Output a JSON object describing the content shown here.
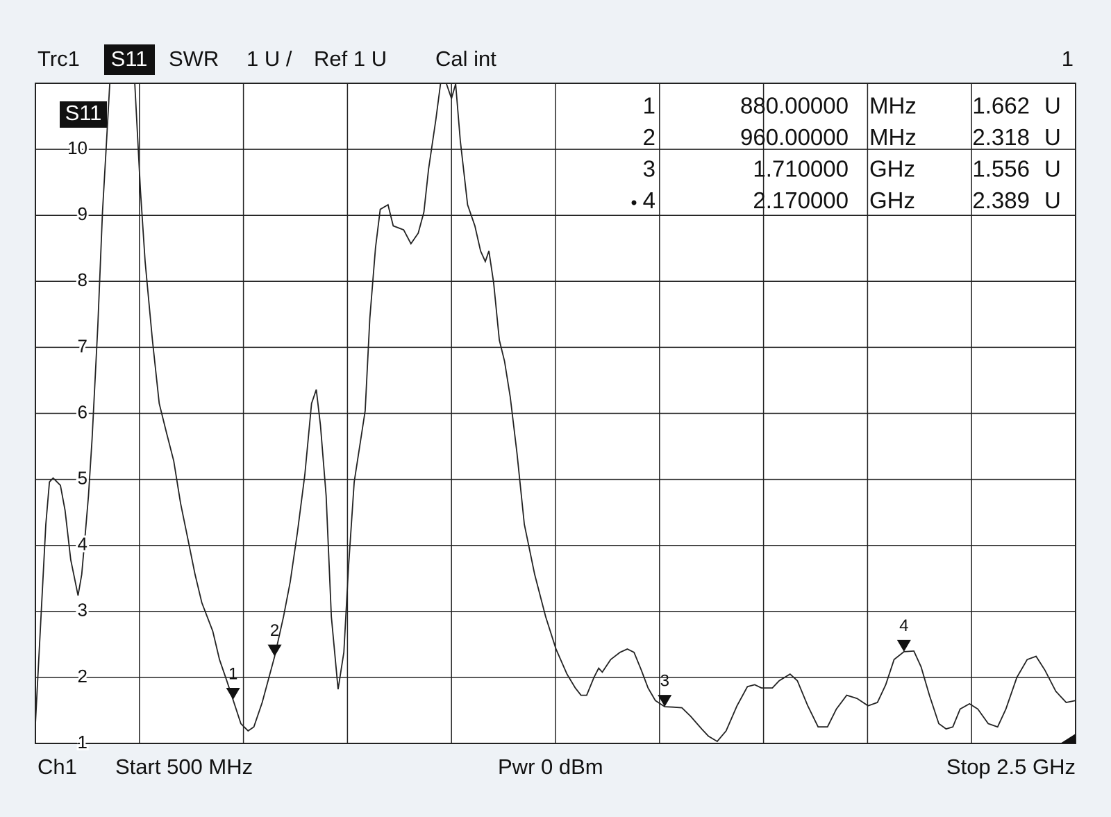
{
  "chart_data": {
    "type": "line",
    "trace": "Trc1",
    "parameter": "S11",
    "format": "SWR",
    "scale": "1 U /",
    "reference": "Ref 1 U",
    "calibration": "Cal int",
    "window": "1",
    "channel": "Ch1",
    "start": "Start 500 MHz",
    "power": "Pwr 0 dBm",
    "stop": "Stop 2.5 GHz",
    "xlim": [
      500,
      2500
    ],
    "ylim": [
      1,
      11
    ],
    "yticks": [
      1,
      2,
      3,
      4,
      5,
      6,
      7,
      8,
      9,
      10
    ],
    "grid": true,
    "series": [
      {
        "name": "S11",
        "color": "#222222",
        "x": [
          500,
          520,
          527,
          534,
          548,
          557,
          568,
          575,
          582,
          589,
          595,
          602,
          609,
          620,
          629,
          636,
          643,
          691,
          702,
          711,
          725,
          738,
          752,
          766,
          779,
          793,
          807,
          820,
          841,
          854,
          868,
          880,
          895,
          909,
          920,
          936,
          960,
          977,
          990,
          1004,
          1018,
          1031,
          1040,
          1048,
          1059,
          1069,
          1082,
          1093,
          1102,
          1113,
          1134,
          1143,
          1154,
          1163,
          1178,
          1188,
          1208,
          1222,
          1236,
          1247,
          1256,
          1270,
          1279,
          1290,
          1300,
          1308,
          1317,
          1331,
          1345,
          1356,
          1365,
          1372,
          1381,
          1392,
          1402,
          1413,
          1426,
          1440,
          1460,
          1481,
          1501,
          1522,
          1538,
          1549,
          1560,
          1574,
          1583,
          1590,
          1606,
          1624,
          1638,
          1651,
          1665,
          1678,
          1692,
          1710,
          1726,
          1743,
          1760,
          1781,
          1794,
          1811,
          1828,
          1849,
          1869,
          1883,
          1896,
          1917,
          1930,
          1951,
          1965,
          1985,
          2005,
          2023,
          2040,
          2060,
          2080,
          2101,
          2119,
          2135,
          2151,
          2170,
          2189,
          2203,
          2219,
          2237,
          2251,
          2264,
          2278,
          2296,
          2312,
          2332,
          2350,
          2366,
          2387,
          2407,
          2424,
          2441,
          2462,
          2482,
          2500
        ],
        "values": [
          1.3,
          4.32,
          4.96,
          5.02,
          4.91,
          4.53,
          3.78,
          3.51,
          3.24,
          3.56,
          4.1,
          4.75,
          5.61,
          7.33,
          9.05,
          10.02,
          11,
          11,
          9.37,
          8.3,
          7.11,
          6.15,
          5.71,
          5.28,
          4.64,
          4.1,
          3.56,
          3.13,
          2.7,
          2.27,
          1.95,
          1.662,
          1.3,
          1.19,
          1.25,
          1.62,
          2.318,
          2.92,
          3.45,
          4.21,
          5.07,
          6.15,
          6.36,
          5.82,
          4.75,
          2.92,
          1.82,
          2.38,
          3.67,
          4.96,
          6.04,
          7.44,
          8.51,
          9.09,
          9.16,
          8.84,
          8.78,
          8.57,
          8.73,
          9.05,
          9.7,
          10.45,
          11,
          11,
          10.77,
          10.99,
          10.13,
          9.16,
          8.84,
          8.46,
          8.3,
          8.46,
          7.98,
          7.11,
          6.79,
          6.25,
          5.39,
          4.32,
          3.56,
          2.92,
          2.43,
          2.05,
          1.84,
          1.73,
          1.73,
          2.0,
          2.14,
          2.08,
          2.27,
          2.38,
          2.43,
          2.38,
          2.11,
          1.84,
          1.65,
          1.556,
          1.55,
          1.54,
          1.41,
          1.22,
          1.11,
          1.03,
          1.19,
          1.57,
          1.86,
          1.89,
          1.84,
          1.84,
          1.95,
          2.05,
          1.95,
          1.57,
          1.25,
          1.25,
          1.52,
          1.73,
          1.68,
          1.57,
          1.62,
          1.89,
          2.27,
          2.389,
          2.4,
          2.16,
          1.73,
          1.3,
          1.22,
          1.25,
          1.52,
          1.6,
          1.52,
          1.3,
          1.25,
          1.52,
          2.0,
          2.27,
          2.32,
          2.11,
          1.79,
          1.62,
          1.65
        ]
      }
    ],
    "markers": {
      "labels": [
        "1",
        "2",
        "3",
        "4"
      ],
      "x": [
        880,
        960,
        1710,
        2170
      ],
      "x_labels": [
        "880.00000",
        "960.00000",
        "1.710000",
        "2.170000"
      ],
      "x_units": [
        "MHz",
        "MHz",
        "GHz",
        "GHz"
      ],
      "values": [
        1.662,
        2.318,
        1.556,
        2.389
      ],
      "value_labels": [
        "1.662",
        "2.318",
        "1.556",
        "2.389"
      ],
      "unit": "U"
    }
  }
}
